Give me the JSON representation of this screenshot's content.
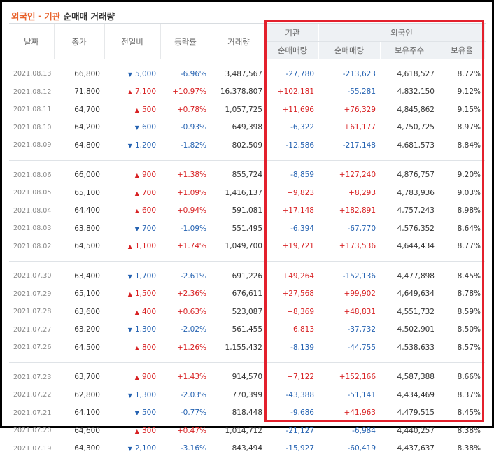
{
  "title": {
    "part1": "외국인",
    "sep": "·",
    "part2": "기관",
    "part3": "순매매 거래량"
  },
  "headers": {
    "date": "날짜",
    "close": "종가",
    "change": "전일비",
    "rate": "등락률",
    "volume": "거래량",
    "inst_group": "기관",
    "foreign_group": "외국인",
    "inst_net": "순매매량",
    "foreign_net": "순매매량",
    "holdings": "보유주수",
    "ratio": "보유율"
  },
  "groups": [
    {
      "rows": [
        {
          "date": "2021.08.13",
          "close": "66,800",
          "dir": "down",
          "change": "5,000",
          "rate": "-6.96%",
          "volume": "3,487,567",
          "inst": "-27,780",
          "foreign": "-213,623",
          "holdings": "4,618,527",
          "ratio": "8.72%"
        },
        {
          "date": "2021.08.12",
          "close": "71,800",
          "dir": "up",
          "change": "7,100",
          "rate": "+10.97%",
          "volume": "16,378,807",
          "inst": "+102,181",
          "foreign": "-55,281",
          "holdings": "4,832,150",
          "ratio": "9.12%"
        },
        {
          "date": "2021.08.11",
          "close": "64,700",
          "dir": "up",
          "change": "500",
          "rate": "+0.78%",
          "volume": "1,057,725",
          "inst": "+11,696",
          "foreign": "+76,329",
          "holdings": "4,845,862",
          "ratio": "9.15%"
        },
        {
          "date": "2021.08.10",
          "close": "64,200",
          "dir": "down",
          "change": "600",
          "rate": "-0.93%",
          "volume": "649,398",
          "inst": "-6,322",
          "foreign": "+61,177",
          "holdings": "4,750,725",
          "ratio": "8.97%"
        },
        {
          "date": "2021.08.09",
          "close": "64,800",
          "dir": "down",
          "change": "1,200",
          "rate": "-1.82%",
          "volume": "802,509",
          "inst": "-12,586",
          "foreign": "-217,148",
          "holdings": "4,681,573",
          "ratio": "8.84%"
        }
      ]
    },
    {
      "rows": [
        {
          "date": "2021.08.06",
          "close": "66,000",
          "dir": "up",
          "change": "900",
          "rate": "+1.38%",
          "volume": "855,724",
          "inst": "-8,859",
          "foreign": "+127,240",
          "holdings": "4,876,757",
          "ratio": "9.20%"
        },
        {
          "date": "2021.08.05",
          "close": "65,100",
          "dir": "up",
          "change": "700",
          "rate": "+1.09%",
          "volume": "1,416,137",
          "inst": "+9,823",
          "foreign": "+8,293",
          "holdings": "4,783,936",
          "ratio": "9.03%"
        },
        {
          "date": "2021.08.04",
          "close": "64,400",
          "dir": "up",
          "change": "600",
          "rate": "+0.94%",
          "volume": "591,081",
          "inst": "+17,148",
          "foreign": "+182,891",
          "holdings": "4,757,243",
          "ratio": "8.98%"
        },
        {
          "date": "2021.08.03",
          "close": "63,800",
          "dir": "down",
          "change": "700",
          "rate": "-1.09%",
          "volume": "551,495",
          "inst": "-6,394",
          "foreign": "-67,770",
          "holdings": "4,576,352",
          "ratio": "8.64%"
        },
        {
          "date": "2021.08.02",
          "close": "64,500",
          "dir": "up",
          "change": "1,100",
          "rate": "+1.74%",
          "volume": "1,049,700",
          "inst": "+19,721",
          "foreign": "+173,536",
          "holdings": "4,644,434",
          "ratio": "8.77%"
        }
      ]
    },
    {
      "rows": [
        {
          "date": "2021.07.30",
          "close": "63,400",
          "dir": "down",
          "change": "1,700",
          "rate": "-2.61%",
          "volume": "691,226",
          "inst": "+49,264",
          "foreign": "-152,136",
          "holdings": "4,477,898",
          "ratio": "8.45%"
        },
        {
          "date": "2021.07.29",
          "close": "65,100",
          "dir": "up",
          "change": "1,500",
          "rate": "+2.36%",
          "volume": "676,611",
          "inst": "+27,568",
          "foreign": "+99,902",
          "holdings": "4,649,634",
          "ratio": "8.78%"
        },
        {
          "date": "2021.07.28",
          "close": "63,600",
          "dir": "up",
          "change": "400",
          "rate": "+0.63%",
          "volume": "523,087",
          "inst": "+8,369",
          "foreign": "+48,831",
          "holdings": "4,551,732",
          "ratio": "8.59%"
        },
        {
          "date": "2021.07.27",
          "close": "63,200",
          "dir": "down",
          "change": "1,300",
          "rate": "-2.02%",
          "volume": "561,455",
          "inst": "+6,813",
          "foreign": "-37,732",
          "holdings": "4,502,901",
          "ratio": "8.50%"
        },
        {
          "date": "2021.07.26",
          "close": "64,500",
          "dir": "up",
          "change": "800",
          "rate": "+1.26%",
          "volume": "1,155,432",
          "inst": "-8,139",
          "foreign": "-44,755",
          "holdings": "4,538,633",
          "ratio": "8.57%"
        }
      ]
    },
    {
      "rows": [
        {
          "date": "2021.07.23",
          "close": "63,700",
          "dir": "up",
          "change": "900",
          "rate": "+1.43%",
          "volume": "914,570",
          "inst": "+7,122",
          "foreign": "+152,166",
          "holdings": "4,587,388",
          "ratio": "8.66%"
        },
        {
          "date": "2021.07.22",
          "close": "62,800",
          "dir": "down",
          "change": "1,300",
          "rate": "-2.03%",
          "volume": "770,399",
          "inst": "-43,388",
          "foreign": "-51,141",
          "holdings": "4,434,469",
          "ratio": "8.37%"
        },
        {
          "date": "2021.07.21",
          "close": "64,100",
          "dir": "down",
          "change": "500",
          "rate": "-0.77%",
          "volume": "818,448",
          "inst": "-9,686",
          "foreign": "+41,963",
          "holdings": "4,479,515",
          "ratio": "8.45%"
        },
        {
          "date": "2021.07.20",
          "close": "64,600",
          "dir": "up",
          "change": "300",
          "rate": "+0.47%",
          "volume": "1,014,712",
          "inst": "-21,127",
          "foreign": "-6,984",
          "holdings": "4,440,257",
          "ratio": "8.38%"
        },
        {
          "date": "2021.07.19",
          "close": "64,300",
          "dir": "down",
          "change": "2,100",
          "rate": "-3.16%",
          "volume": "843,494",
          "inst": "-15,927",
          "foreign": "-60,419",
          "holdings": "4,437,637",
          "ratio": "8.38%"
        }
      ]
    }
  ],
  "icons": {
    "up": "triangle-up-icon",
    "down": "triangle-down-icon"
  },
  "colors": {
    "up": "#d82224",
    "down": "#2663b2",
    "highlight_box": "#e3202c",
    "title_accent": "#e8622b"
  }
}
